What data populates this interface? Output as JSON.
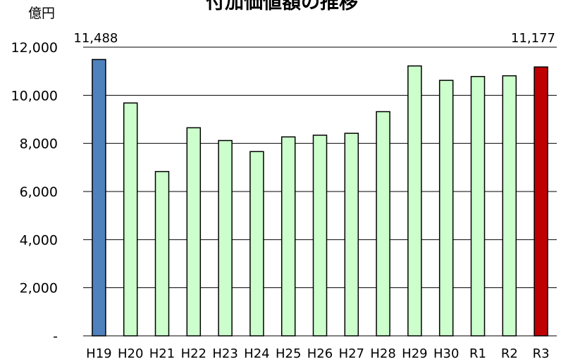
{
  "chart_data": {
    "type": "bar",
    "title": "付加価値額の推移",
    "unit_label": "億円",
    "categories": [
      "H19",
      "H20",
      "H21",
      "H22",
      "H23",
      "H24",
      "H25",
      "H26",
      "H27",
      "H28",
      "H29",
      "H30",
      "R1",
      "R2",
      "R3"
    ],
    "values": [
      11488,
      9680,
      6830,
      8650,
      8120,
      7660,
      8270,
      8340,
      8420,
      9320,
      11220,
      10620,
      10780,
      10810,
      11177
    ],
    "ylim": [
      0,
      12000
    ],
    "yticks": [
      0,
      2000,
      4000,
      6000,
      8000,
      10000,
      12000
    ],
    "ytick_labels": [
      "-",
      "2,000",
      "4,000",
      "6,000",
      "8,000",
      "10,000",
      "12,000"
    ],
    "data_labels": [
      {
        "category": "H19",
        "text": "11,488"
      },
      {
        "category": "R3",
        "text": "11,177"
      }
    ],
    "grid": true,
    "legend": "none",
    "colors": {
      "default": "#ccffcc",
      "highlight_first": "#4f81bd",
      "highlight_last": "#c00000",
      "outline": "#000000"
    }
  }
}
